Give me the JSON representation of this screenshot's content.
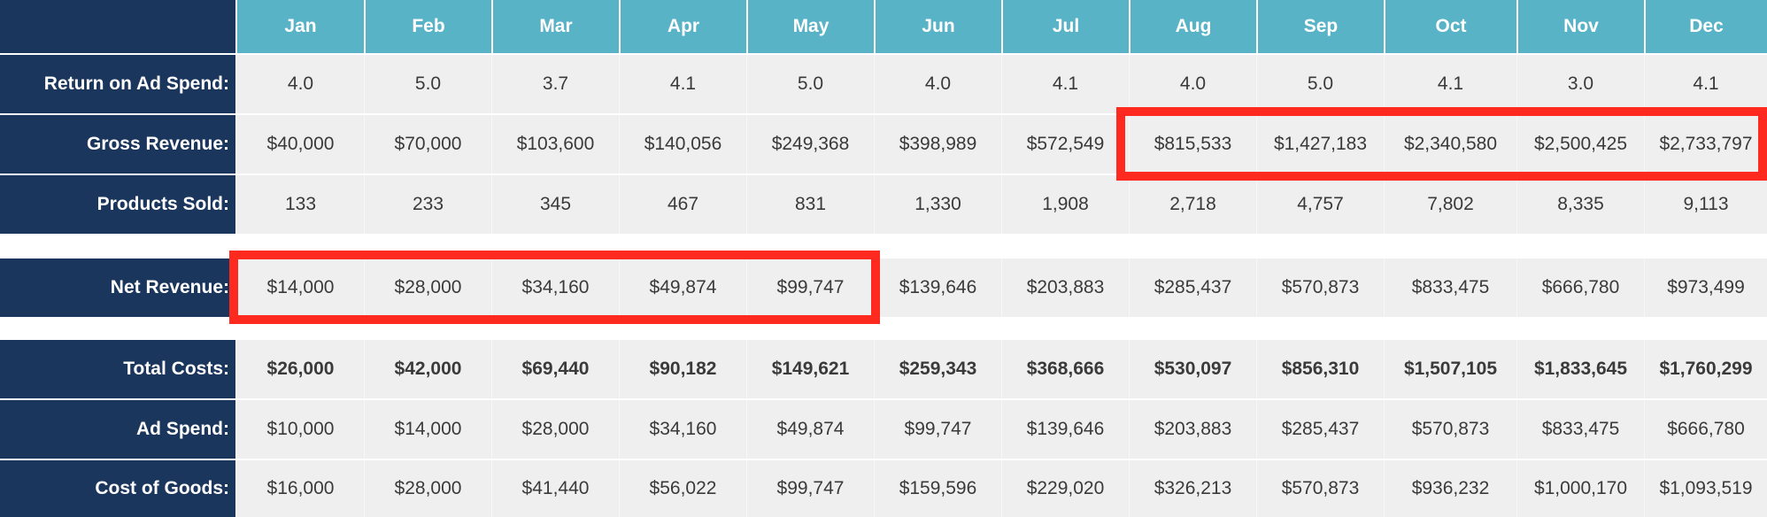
{
  "months": [
    "Jan",
    "Feb",
    "Mar",
    "Apr",
    "May",
    "Jun",
    "Jul",
    "Aug",
    "Sep",
    "Oct",
    "Nov",
    "Dec"
  ],
  "rows": {
    "roas": {
      "label": "Return on Ad Spend:",
      "values": [
        "4.0",
        "5.0",
        "3.7",
        "4.1",
        "5.0",
        "4.0",
        "4.1",
        "4.0",
        "5.0",
        "4.1",
        "3.0",
        "4.1"
      ]
    },
    "gross_revenue": {
      "label": "Gross Revenue:",
      "values": [
        "$40,000",
        "$70,000",
        "$103,600",
        "$140,056",
        "$249,368",
        "$398,989",
        "$572,549",
        "$815,533",
        "$1,427,183",
        "$2,340,580",
        "$2,500,425",
        "$2,733,797"
      ]
    },
    "products_sold": {
      "label": "Products Sold:",
      "values": [
        "133",
        "233",
        "345",
        "467",
        "831",
        "1,330",
        "1,908",
        "2,718",
        "4,757",
        "7,802",
        "8,335",
        "9,113"
      ]
    },
    "net_revenue": {
      "label": "Net Revenue:",
      "values": [
        "$14,000",
        "$28,000",
        "$34,160",
        "$49,874",
        "$99,747",
        "$139,646",
        "$203,883",
        "$285,437",
        "$570,873",
        "$833,475",
        "$666,780",
        "$973,499"
      ]
    },
    "total_costs": {
      "label": "Total Costs:",
      "values": [
        "$26,000",
        "$42,000",
        "$69,440",
        "$90,182",
        "$149,621",
        "$259,343",
        "$368,666",
        "$530,097",
        "$856,310",
        "$1,507,105",
        "$1,833,645",
        "$1,760,299"
      ]
    },
    "ad_spend": {
      "label": "Ad Spend:",
      "values": [
        "$10,000",
        "$14,000",
        "$28,000",
        "$34,160",
        "$49,874",
        "$99,747",
        "$139,646",
        "$203,883",
        "$285,437",
        "$570,873",
        "$833,475",
        "$666,780"
      ]
    },
    "cost_of_goods": {
      "label": "Cost of Goods:",
      "values": [
        "$16,000",
        "$28,000",
        "$41,440",
        "$56,022",
        "$99,747",
        "$159,596",
        "$229,020",
        "$326,213",
        "$570,873",
        "$936,232",
        "$1,000,170",
        "$1,093,519"
      ]
    }
  },
  "highlights": [
    {
      "row": "Gross Revenue",
      "months": [
        "Aug",
        "Sep",
        "Oct",
        "Nov",
        "Dec"
      ],
      "color": "#ff2a1f"
    },
    {
      "row": "Net Revenue",
      "months": [
        "Jan",
        "Feb",
        "Mar",
        "Apr",
        "May"
      ],
      "color": "#ff2a1f"
    }
  ],
  "colors": {
    "header_bg": "#59b3c7",
    "label_bg": "#1b365d",
    "cell_bg": "#efefef",
    "text": "#3a3a3a",
    "highlight": "#ff2a1f"
  }
}
